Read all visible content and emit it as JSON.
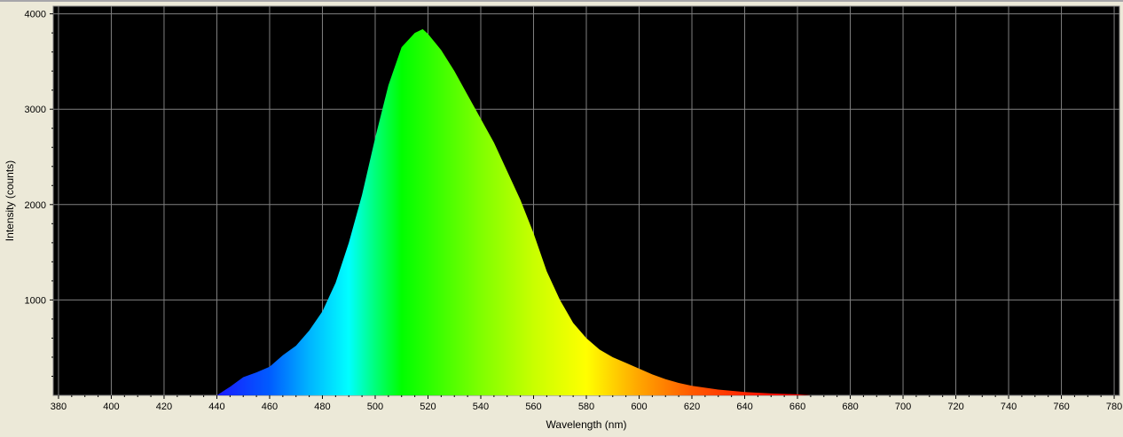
{
  "chart_data": {
    "type": "area",
    "xlabel": "Wavelength (nm)",
    "ylabel": "Intensity (counts)",
    "xlim": [
      378,
      782
    ],
    "ylim": [
      0,
      4080
    ],
    "x_ticks": [
      380,
      400,
      420,
      440,
      460,
      480,
      500,
      520,
      540,
      560,
      580,
      600,
      620,
      640,
      660,
      680,
      700,
      720,
      740,
      760,
      780
    ],
    "y_ticks": [
      1000,
      2000,
      3000,
      4000
    ],
    "grid": true,
    "background": "#000000",
    "grid_color": "#808080",
    "fill": "spectrum-colored",
    "series": [
      {
        "x": [
          440,
          445,
          450,
          455,
          460,
          465,
          470,
          475,
          480,
          485,
          490,
          495,
          500,
          505,
          510,
          515,
          518,
          520,
          525,
          530,
          535,
          540,
          545,
          550,
          555,
          560,
          565,
          570,
          575,
          580,
          585,
          590,
          595,
          600,
          605,
          610,
          615,
          620,
          630,
          640,
          650,
          660,
          665
        ],
        "values": [
          0,
          90,
          190,
          240,
          300,
          420,
          520,
          680,
          880,
          1180,
          1600,
          2100,
          2700,
          3250,
          3650,
          3800,
          3840,
          3790,
          3620,
          3400,
          3150,
          2900,
          2650,
          2350,
          2050,
          1700,
          1300,
          1000,
          760,
          600,
          480,
          400,
          340,
          280,
          220,
          170,
          130,
          100,
          60,
          35,
          20,
          10,
          0
        ]
      }
    ]
  }
}
